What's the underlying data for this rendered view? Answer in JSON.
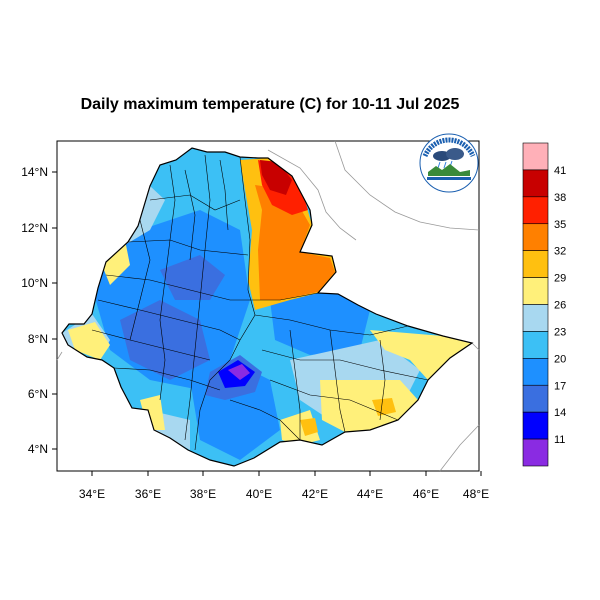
{
  "title": "Daily maximum temperature (C) for 10-11 Jul 2025",
  "map": {
    "lon_range": [
      33,
      48
    ],
    "lat_range": [
      3,
      15
    ],
    "x_ticks": [
      "34°E",
      "36°E",
      "38°E",
      "40°E",
      "42°E",
      "44°E",
      "46°E",
      "48°E"
    ],
    "y_ticks": [
      "4°N",
      "6°N",
      "8°N",
      "10°N",
      "12°N",
      "14°N"
    ],
    "region": "Ethiopia"
  },
  "colorbar": {
    "labels": [
      "11",
      "14",
      "17",
      "20",
      "23",
      "26",
      "29",
      "32",
      "35",
      "38",
      "41"
    ],
    "colors": [
      "#8a2be2",
      "#0000ff",
      "#3a6fe0",
      "#1e90ff",
      "#3cc0f5",
      "#a8d8f0",
      "#fff07a",
      "#ffc010",
      "#ff8000",
      "#ff2000",
      "#c80000",
      "#ffb0b8"
    ]
  },
  "logo": {
    "name": "Ethiopian Meteorology Institute logo"
  },
  "colors": {
    "background": "#ffffff",
    "frame": "#000000",
    "outside_land": "#ffffff",
    "boundaries": "#000000"
  }
}
